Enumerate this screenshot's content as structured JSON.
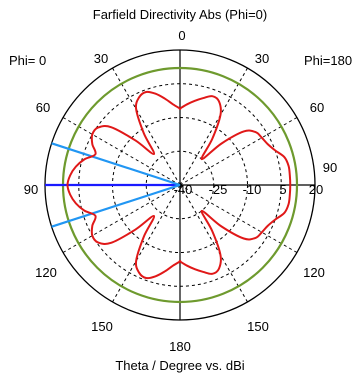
{
  "chart_data": {
    "type": "polar",
    "title": "Farfield Directivity Abs (Phi=0)",
    "xlabel": "Theta / Degree vs. dBi",
    "left_side_label": "Phi=  0",
    "right_side_label": "Phi=180",
    "angle_labels": {
      "top": "0",
      "left_30": "30",
      "left_60": "60",
      "left_90": "90",
      "left_120": "120",
      "left_150": "150",
      "bottom": "180",
      "right_30": "30",
      "right_60": "60",
      "right_90": "90",
      "right_120": "120",
      "right_150": "150"
    },
    "radial_ticks": [
      "-40",
      "-25",
      "-10",
      "5",
      "20"
    ],
    "radial_tick_values": [
      -40,
      -25,
      -10,
      5,
      20
    ],
    "rlim": [
      -40,
      20
    ],
    "grid": true,
    "reference_circle_dbi": 12,
    "series": [
      {
        "color": "#e01818",
        "theta_deg": [
          0,
          5,
          10,
          15,
          20,
          25,
          30,
          35,
          40,
          45,
          50,
          55,
          60,
          65,
          70,
          75,
          80,
          85,
          90,
          95,
          100,
          105,
          110,
          115,
          120,
          125,
          130,
          135,
          140,
          145,
          150,
          155,
          160,
          165,
          170,
          175,
          180
        ],
        "phi0_dbi": [
          -6,
          -4,
          -1,
          2,
          4,
          3,
          -1,
          -12,
          -22,
          -12,
          0,
          4.5,
          5,
          3,
          0,
          4,
          7,
          9,
          10,
          9,
          7,
          4,
          0,
          3,
          5,
          4.5,
          0,
          -12,
          -22,
          -12,
          -1,
          3,
          4,
          2,
          -1,
          -4,
          -6
        ],
        "phi180_dbi": [
          -6,
          -4,
          -2,
          0,
          2,
          1,
          -4,
          -15,
          -25,
          -14,
          -3,
          1,
          2,
          3,
          5,
          8,
          9,
          9,
          9,
          9,
          9,
          8,
          5,
          3,
          2,
          1,
          -3,
          -14,
          -25,
          -15,
          -4,
          1,
          2,
          0,
          -2,
          -4,
          -6
        ]
      }
    ],
    "colors": {
      "curve": "#e01818",
      "reference_circle": "#6e9a2e",
      "main_lobe": "#1a1aff",
      "beamwidth": "#2196f3",
      "grid": "#000000"
    }
  }
}
